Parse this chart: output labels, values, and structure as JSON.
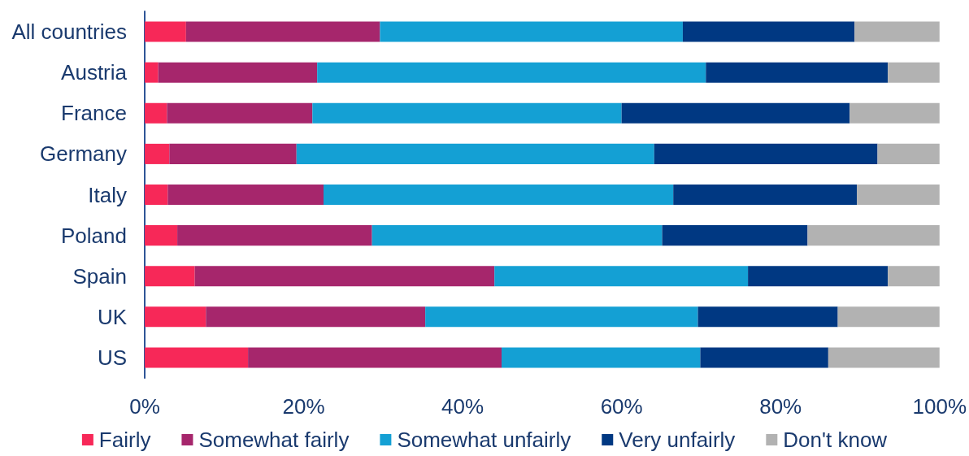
{
  "chart_data": {
    "type": "bar",
    "orientation": "horizontal",
    "stacked": true,
    "categories": [
      "All countries",
      "Austria",
      "France",
      "Germany",
      "Italy",
      "Poland",
      "Spain",
      "UK",
      "US"
    ],
    "series": [
      {
        "name": "Fairly",
        "color": "#f72858",
        "values": [
          5.2,
          1.7,
          2.8,
          3.1,
          2.9,
          4.1,
          6.3,
          7.7,
          13.0
        ]
      },
      {
        "name": "Somewhat fairly",
        "color": "#a6266c",
        "values": [
          24.4,
          20.0,
          18.3,
          16.0,
          19.6,
          24.5,
          37.7,
          27.6,
          31.9
        ]
      },
      {
        "name": "Somewhat unfairly",
        "color": "#14a0d4",
        "values": [
          38.1,
          48.9,
          38.9,
          45.0,
          44.0,
          36.5,
          31.9,
          34.3,
          25.0
        ]
      },
      {
        "name": "Very unfairly",
        "color": "#003882",
        "values": [
          21.6,
          22.9,
          28.7,
          28.1,
          23.1,
          18.3,
          17.6,
          17.6,
          16.1
        ]
      },
      {
        "name": "Don't know",
        "color": "#b2b2b2",
        "values": [
          10.7,
          6.5,
          11.3,
          7.8,
          10.4,
          16.6,
          6.5,
          12.8,
          14.0
        ]
      }
    ],
    "xlim": [
      0,
      100
    ],
    "xticks": [
      {
        "value": 0,
        "label": "0%"
      },
      {
        "value": 20,
        "label": "20%"
      },
      {
        "value": 40,
        "label": "40%"
      },
      {
        "value": 60,
        "label": "60%"
      },
      {
        "value": 80,
        "label": "80%"
      },
      {
        "value": 100,
        "label": "100%"
      }
    ],
    "grid": false,
    "legend": "bottom"
  }
}
